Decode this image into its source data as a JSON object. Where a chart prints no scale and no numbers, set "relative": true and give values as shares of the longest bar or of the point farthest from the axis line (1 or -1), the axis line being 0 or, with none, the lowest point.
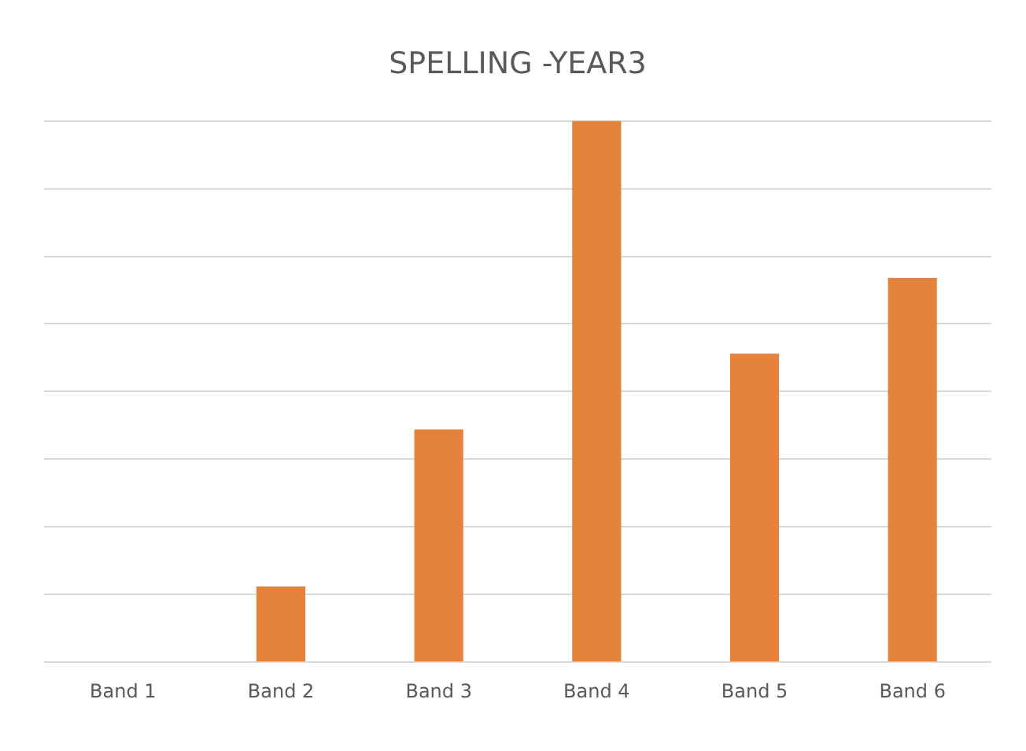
{
  "chart_data": {
    "type": "bar",
    "title": "SPELLING -YEAR3",
    "relative": true,
    "categories": [
      "Band 1",
      "Band 2",
      "Band 3",
      "Band 4",
      "Band 5",
      "Band 6"
    ],
    "values": [
      0,
      0.14,
      0.43,
      1,
      0.57,
      0.71
    ],
    "color": "#e5833c",
    "grid": "y"
  }
}
